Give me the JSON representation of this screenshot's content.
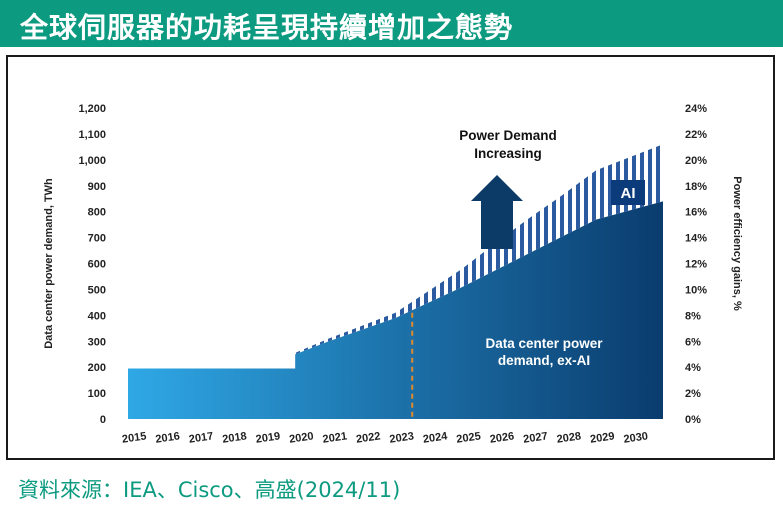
{
  "title": "全球伺服器的功耗呈現持續增加之態勢",
  "source": "資料來源：IEA、Cisco、高盛(2024/11)",
  "colors": {
    "title_bg": "#0c9a80",
    "source_text": "#0c9a80",
    "area_left": "#2fa8e6",
    "area_right": "#0a3c6e",
    "arrow": "#0b3b66",
    "marker_line": "#e08a2c"
  },
  "chart_data": {
    "type": "area",
    "x": [
      "2015",
      "2016",
      "2017",
      "2018",
      "2019",
      "2020",
      "2021",
      "2022",
      "2023",
      "2024",
      "2025",
      "2026",
      "2027",
      "2028",
      "2029",
      "2030"
    ],
    "series": [
      {
        "name": "Data center power demand, ex-AI",
        "values": [
          195,
          195,
          195,
          195,
          195,
          250,
          300,
          345,
          390,
          450,
          510,
          575,
          640,
          705,
          770,
          840
        ]
      },
      {
        "name": "AI",
        "values": [
          0,
          0,
          0,
          0,
          0,
          5,
          10,
          15,
          20,
          45,
          70,
          105,
          135,
          160,
          190,
          220
        ]
      }
    ],
    "ylabel": "Data center power demand, TWh",
    "y2label": "Power efficiency gains, %",
    "ylim": [
      0,
      1200
    ],
    "yticks": [
      "0",
      "100",
      "200",
      "300",
      "400",
      "500",
      "600",
      "700",
      "800",
      "900",
      "1,000",
      "1,100",
      "1,200"
    ],
    "y2lim": [
      0,
      24
    ],
    "y2ticks": [
      "0%",
      "2%",
      "4%",
      "6%",
      "8%",
      "10%",
      "12%",
      "14%",
      "16%",
      "18%",
      "20%",
      "22%",
      "24%"
    ],
    "annotations": {
      "power_demand_line1": "Power Demand",
      "power_demand_line2": "Increasing",
      "ai_label": "AI",
      "exai_line1": "Data center power",
      "exai_line2": "demand, ex-AI"
    },
    "marker_year": "2023",
    "grid": false,
    "legend": "none"
  }
}
